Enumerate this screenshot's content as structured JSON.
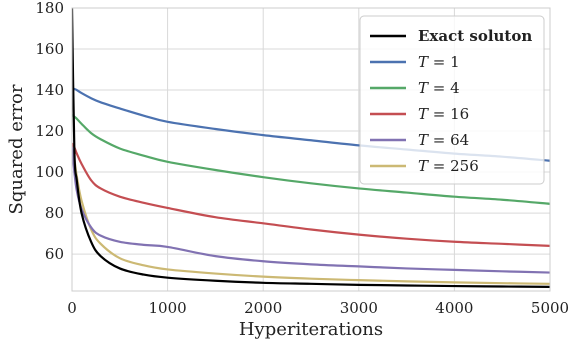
{
  "chart_data": {
    "type": "line",
    "title": "",
    "xlabel": "Hyperiterations",
    "ylabel": "Squared error",
    "xlim": [
      0,
      5000
    ],
    "ylim": [
      42,
      180
    ],
    "xticks": [
      0,
      1000,
      2000,
      3000,
      4000,
      5000
    ],
    "yticks": [
      60,
      80,
      100,
      120,
      140,
      160,
      180
    ],
    "xtick_labels": [
      "0",
      "1000",
      "2000",
      "3000",
      "4000",
      "5000"
    ],
    "ytick_labels": [
      "60",
      "80",
      "100",
      "120",
      "140",
      "160",
      "180"
    ],
    "grid": true,
    "legend_position": "top-right",
    "x": [
      0,
      25,
      50,
      100,
      200,
      300,
      500,
      750,
      1000,
      1500,
      2000,
      2500,
      3000,
      3500,
      4000,
      4500,
      5000
    ],
    "series": [
      {
        "name": "Exact soluton",
        "color": "#000000",
        "values": [
          180,
          110,
          96,
          80,
          66,
          59,
          53,
          50,
          48.5,
          47,
          46,
          45.5,
          45,
          44.7,
          44.4,
          44.2,
          44
        ]
      },
      {
        "name": "T = 1",
        "name_parts": [
          "T",
          " = 1"
        ],
        "color": "#4C72B0",
        "values": [
          141,
          140.5,
          140,
          138.5,
          136,
          134,
          131,
          127.5,
          124.5,
          121,
          118,
          115.5,
          113,
          111,
          109,
          107.5,
          105.5
        ]
      },
      {
        "name": "T = 4",
        "name_parts": [
          "T",
          " = 4"
        ],
        "color": "#55A868",
        "values": [
          128,
          127,
          126,
          123.5,
          119,
          116,
          111.5,
          108,
          105,
          101,
          97.5,
          94.5,
          92,
          90,
          88,
          86.5,
          84.5
        ]
      },
      {
        "name": "T = 16",
        "name_parts": [
          "T",
          " = 16"
        ],
        "color": "#C44E52",
        "values": [
          114,
          112,
          109,
          104,
          96,
          92,
          88,
          85,
          82.5,
          78,
          75,
          72,
          69.5,
          67.5,
          66,
          65,
          64
        ]
      },
      {
        "name": "T = 64",
        "name_parts": [
          "T",
          " = 64"
        ],
        "color": "#8172B2",
        "values": [
          113,
          100,
          91,
          82,
          73,
          69,
          66,
          64.5,
          63.5,
          59,
          56.5,
          55,
          54,
          53,
          52.3,
          51.6,
          51
        ]
      },
      {
        "name": "T = 256",
        "name_parts": [
          "T",
          " = 256"
        ],
        "color": "#CCB974",
        "values": [
          110,
          106,
          98,
          86,
          72,
          65,
          58,
          54.5,
          52.5,
          50.5,
          49,
          48,
          47.3,
          46.7,
          46.2,
          45.8,
          45.5
        ]
      }
    ]
  }
}
